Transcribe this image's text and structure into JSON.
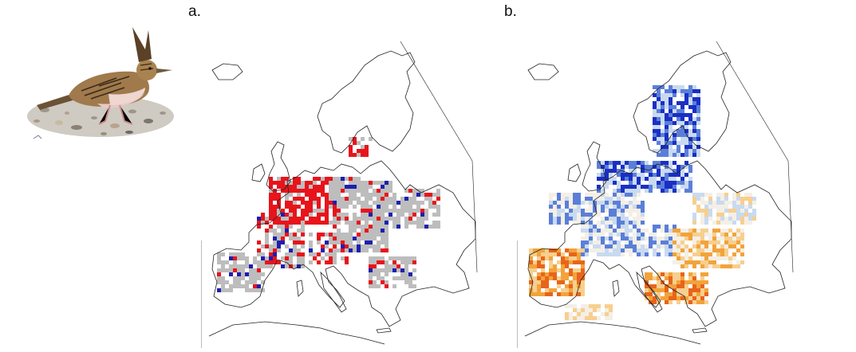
{
  "panels": {
    "a": {
      "label": "a."
    },
    "b": {
      "label": "b."
    }
  },
  "bird_illustration": {
    "icon": "crested-lark-illustration"
  },
  "map_a": {
    "colors": {
      "range": "#bdbdbd",
      "red": "#e8141b",
      "blue": "#1c1fb0",
      "outline": "#222222"
    }
  },
  "map_b": {
    "colors": {
      "deep_blue": "#1a2fc4",
      "mid_blue": "#5b7fd8",
      "light_blue": "#c9daf0",
      "pale": "#f4efe6",
      "light_orange": "#f7cf8e",
      "orange": "#f2a33a",
      "deep_orange": "#e8641b",
      "outline": "#222222"
    }
  }
}
